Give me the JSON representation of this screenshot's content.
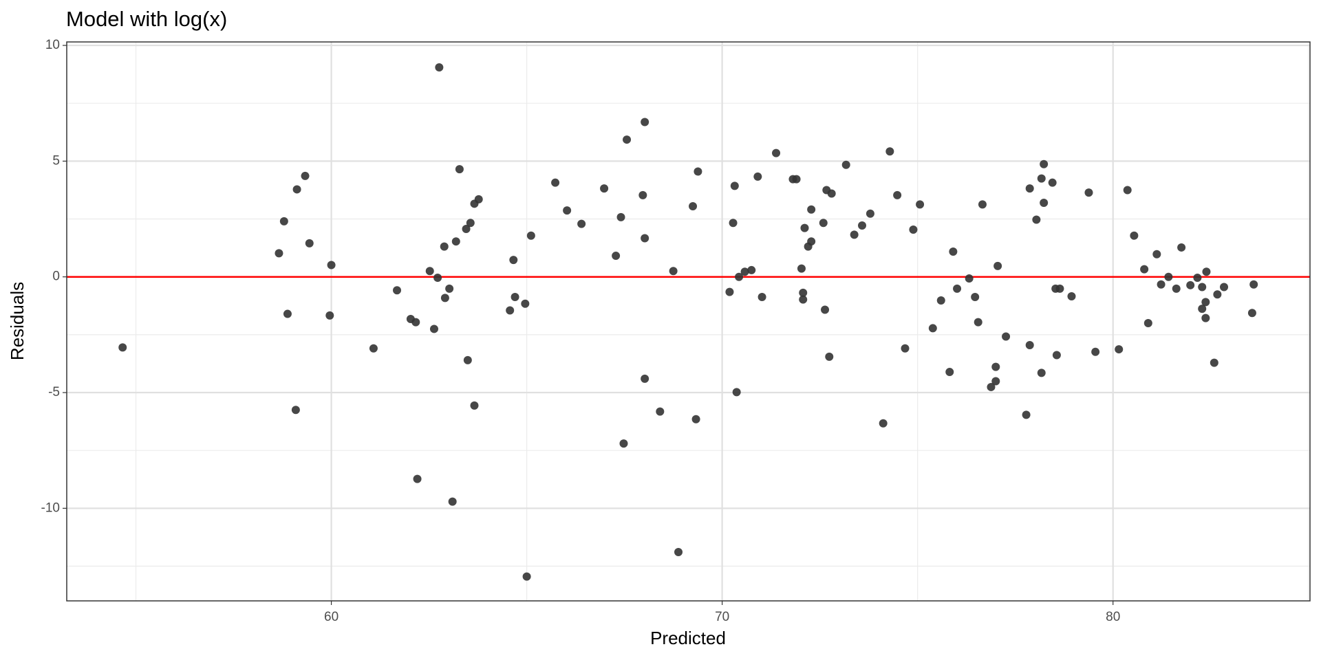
{
  "chart_data": {
    "type": "scatter",
    "title": "Model with log(x)",
    "x_label": "Predicted",
    "y_label": "Residuals",
    "color": "#333333",
    "grid": true,
    "xlim": [
      53.23,
      85.04
    ],
    "ylim": [
      -14.0,
      10.15
    ],
    "xticks": [
      60,
      70,
      80
    ],
    "yticks": [
      10,
      5,
      0,
      -5,
      -10
    ],
    "xminor": [
      55,
      65,
      75,
      85
    ],
    "yminor": [
      7.5,
      2.5,
      -2.5,
      -7.5,
      -12.5
    ],
    "hline": {
      "value": 0,
      "color": "#ff0000"
    },
    "x": [
      54.66,
      58.66,
      58.79,
      58.88,
      59.12,
      59.09,
      59.33,
      59.44,
      60.0,
      59.96,
      61.08,
      61.68,
      62.03,
      62.16,
      62.2,
      62.52,
      62.63,
      62.72,
      62.76,
      62.89,
      62.91,
      63.02,
      63.1,
      63.19,
      63.28,
      63.45,
      63.49,
      63.56,
      63.66,
      63.66,
      63.77,
      64.57,
      64.66,
      64.7,
      64.96,
      65.0,
      65.11,
      65.73,
      66.03,
      66.4,
      66.98,
      67.28,
      67.41,
      67.48,
      67.56,
      67.97,
      68.02,
      68.02,
      68.02,
      68.41,
      68.75,
      68.88,
      69.25,
      69.33,
      69.38,
      70.19,
      70.28,
      70.32,
      70.37,
      70.43,
      70.58,
      70.75,
      70.91,
      71.02,
      71.38,
      71.81,
      71.9,
      72.03,
      72.07,
      72.07,
      72.11,
      72.2,
      72.28,
      72.28,
      72.59,
      72.63,
      72.67,
      72.74,
      72.8,
      73.17,
      73.38,
      73.58,
      73.79,
      74.12,
      74.29,
      74.48,
      74.68,
      74.89,
      75.06,
      75.39,
      75.6,
      75.82,
      75.91,
      76.01,
      76.32,
      76.47,
      76.55,
      76.66,
      76.88,
      77.0,
      77.0,
      77.05,
      77.26,
      77.78,
      77.87,
      77.87,
      78.04,
      78.17,
      78.17,
      78.23,
      78.23,
      78.45,
      78.53,
      78.56,
      78.64,
      78.94,
      79.38,
      79.55,
      80.15,
      80.37,
      80.54,
      80.8,
      80.9,
      81.12,
      81.23,
      81.42,
      81.62,
      81.75,
      81.98,
      82.16,
      82.28,
      82.28,
      82.37,
      82.39,
      82.37,
      82.59,
      82.67,
      82.84,
      83.56,
      83.6
    ],
    "values": [
      -3.05,
      1.02,
      2.4,
      -1.6,
      3.78,
      -5.75,
      4.36,
      1.45,
      0.51,
      -1.67,
      -3.09,
      -0.58,
      -1.82,
      -1.96,
      -8.73,
      0.25,
      -2.25,
      -0.04,
      9.05,
      1.31,
      -0.91,
      -0.51,
      -9.71,
      1.53,
      4.65,
      2.07,
      -3.6,
      2.33,
      3.16,
      -5.56,
      3.35,
      -1.45,
      0.73,
      -0.87,
      -1.16,
      -12.95,
      1.78,
      4.07,
      2.87,
      2.29,
      3.82,
      0.91,
      2.58,
      -7.2,
      5.93,
      3.53,
      6.69,
      1.67,
      -4.4,
      -5.82,
      0.25,
      -11.89,
      3.05,
      -6.15,
      4.55,
      -0.65,
      2.33,
      3.93,
      -4.98,
      0,
      0.22,
      0.29,
      4.33,
      -0.87,
      5.35,
      4.22,
      4.22,
      0.36,
      -0.69,
      -0.98,
      2.11,
      1.31,
      2.91,
      1.53,
      2.33,
      -1.42,
      3.75,
      -3.45,
      3.6,
      4.84,
      1.82,
      2.22,
      2.73,
      -6.33,
      5.42,
      3.53,
      -3.09,
      2.04,
      3.13,
      -2.22,
      -1.02,
      -4.11,
      1.09,
      -0.51,
      -0.07,
      -0.87,
      -1.96,
      3.13,
      -4.76,
      -3.89,
      -4.51,
      0.47,
      -2.58,
      -5.96,
      3.82,
      -2.95,
      2.47,
      4.25,
      -4.15,
      4.87,
      3.2,
      4.07,
      -0.51,
      -3.38,
      -0.51,
      -0.84,
      3.64,
      -3.24,
      -3.13,
      3.75,
      1.78,
      0.33,
      -2.0,
      0.98,
      -0.33,
      0,
      -0.51,
      1.27,
      -0.36,
      -0.04,
      -0.44,
      -1.38,
      -1.09,
      0.22,
      -1.78,
      -3.71,
      -0.76,
      -0.44,
      -1.56,
      -0.33
    ]
  }
}
